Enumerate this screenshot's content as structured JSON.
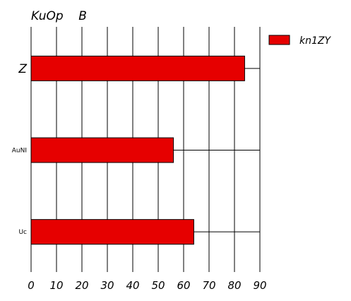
{
  "chart_data": {
    "type": "bar",
    "orientation": "horizontal",
    "title": "KuOp    B",
    "categories": [
      "Z",
      "AuNI",
      "Uc"
    ],
    "series": [
      {
        "name": "kn1ZY",
        "values": [
          84,
          56,
          64
        ],
        "color": "#e60000"
      }
    ],
    "xlim": [
      0,
      90
    ],
    "x_ticks": [
      "0",
      "10",
      "20",
      "30",
      "40",
      "50",
      "60",
      "70",
      "80",
      "90"
    ],
    "grid": true,
    "legend_position": "top-right"
  }
}
